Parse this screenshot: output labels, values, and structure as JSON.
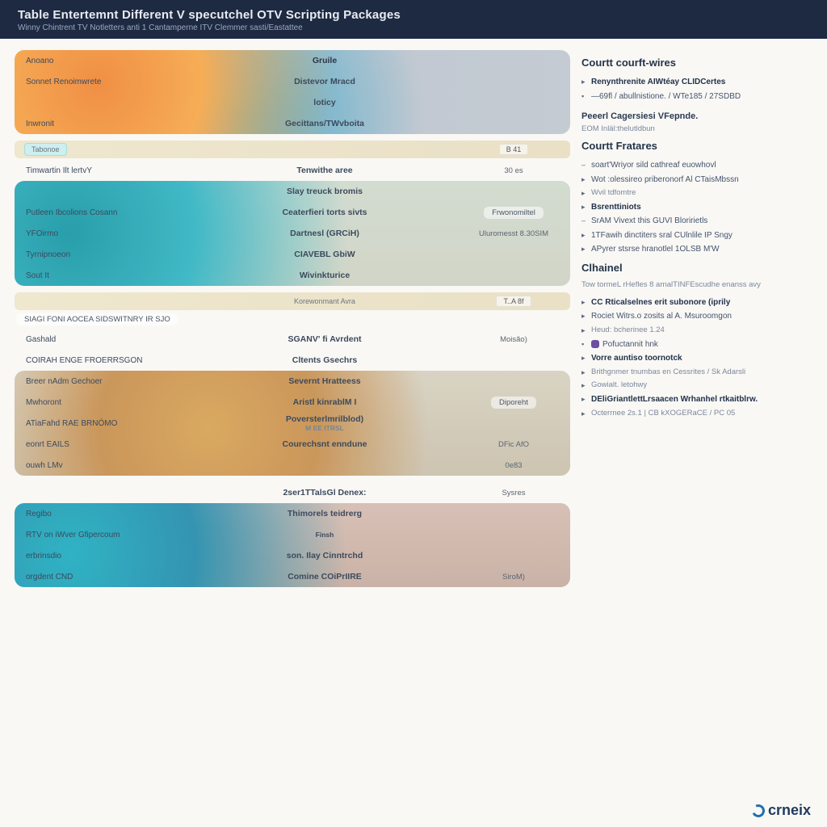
{
  "header": {
    "title": "Table Entertemnt Different V specutchel OTV Scripting Packages",
    "subtitle": "Winny Chintrent TV Notletters anti 1 Cantamperne ITV Clemmer sasti/Eastattee"
  },
  "blocks": [
    {
      "band_css": "radial-gradient(circle at 15% 40%, #f08a3c 0%, #f6a94e 22%, rgba(246,169,78,0) 50%), radial-gradient(circle at 40% 80%, #3aa6c9 0%, rgba(58,166,201,0) 55%), linear-gradient(90deg,#b9c1cc 0%, #c2c9d2 100%)",
      "rows": [
        {
          "c1": "Anoano",
          "c2": "Gruile",
          "c3": "",
          "head": true
        },
        {
          "c1": "Sonnet Renoimwrete",
          "c2": "Distevor Mracd",
          "c3": ""
        },
        {
          "c1": "",
          "c2": "loticy",
          "c3": ""
        },
        {
          "c1": "Inwronit",
          "c2": "Gecittans/TWvboita",
          "c3": ""
        }
      ],
      "footer_left_chip": "Tabonoe",
      "footer_right_box": "B 41",
      "below_left": "Timwartin Ilt lertvY",
      "below_center": "Tenwithe aree",
      "below_right": "30 es"
    },
    {
      "band_css": "radial-gradient(circle at 10% 50%, #1f9aa8 0%, #38b6c4 25%, rgba(56,182,196,0) 55%), linear-gradient(180deg,#d1dbcf 0%, #cfd4c5 100%)",
      "rows": [
        {
          "c1": "",
          "c2": "Slay treuck bromis",
          "c3": ""
        },
        {
          "c1": "Putleen Ibcolions Cosann",
          "c2": "Ceaterfieri torts sivts",
          "c3": "Frwonomiltel",
          "c3pill": true
        },
        {
          "c1": "YFOirmo",
          "c2": "Dartnesl (GRCiH)",
          "c3": "Uluromesst 8.30SIM",
          "tiny3": true
        },
        {
          "c1": "Tyrnipnoeon",
          "c2": "CIAVEBL GbiW",
          "c3": ""
        },
        {
          "c1": "Sout It",
          "c2": "Wivinkturice",
          "c3": "",
          "tiny1": true
        }
      ],
      "footer_left_chip": "",
      "footer_right_box": "T..A 8f",
      "mid_tiny": "Korewonmant Avra"
    },
    {
      "band_css": "radial-gradient(circle at 35% 55%, #d9a559 0%, #c89253 30%, rgba(200,146,83,0) 60%), linear-gradient(180deg,#d8d2c2 0%, #cbc2ae 100%)",
      "pre_left_pill": "SIAGI FONI  AOCEA SIDSWITNRY IR SJO",
      "pre_rows": [
        {
          "c1": "Gashald",
          "c2": "SGANV' fi Avrdent",
          "c3": "Moisão)",
          "tiny1": true,
          "tiny3": true
        },
        {
          "c1": "COIRAH ENGE FROERRSGON",
          "c2": "Cltents Gsechrs",
          "c3": ""
        }
      ],
      "rows": [
        {
          "c1": "Breer nAdm Gechoer",
          "c2": "Severnt Hratteess",
          "c3": ""
        },
        {
          "c1": "Mwhoront",
          "c2": "Aristl kinrablM I",
          "c3": "Diporeht",
          "c3pill": true
        },
        {
          "c1": "ATiaFahd RAE BRNÓMO",
          "c2": "Poversterlmrilblod)",
          "c3": "",
          "sub2": "M   EE ITRSL"
        },
        {
          "c1": "eonrt EAILS",
          "c2": "Courechsnt enndune",
          "c3": "DFic AfO",
          "tiny3": true
        },
        {
          "c1": "ouwh LMv",
          "c2": "",
          "c3": "0e83",
          "tiny1": true,
          "tiny3": true
        }
      ]
    },
    {
      "band_css": "radial-gradient(circle at 10% 60%, #26b0c2 0%, #2a8fae 25%, rgba(42,143,174,0) 55%), linear-gradient(180deg,#d7bdb3 0%, #c7afa3 100%)",
      "pre_rows": [
        {
          "c1": "",
          "c2": "2ser1TTalsGl Denex:",
          "c3": "Sysres",
          "tiny3": true
        }
      ],
      "rows": [
        {
          "c1": "Regibo",
          "c2": "Thimorels teidrerg",
          "c3": ""
        },
        {
          "c1": "RTV on iWver Gfipercoum",
          "c2": "Finsh",
          "c3": "",
          "tiny2": true
        },
        {
          "c1": "erbrinsdio",
          "c2": "son. Ilay Cinntrchd",
          "c3": ""
        },
        {
          "c1": "orgdent CND",
          "c2": "Comine COiPrIIRE",
          "c3": "SiroM)",
          "tiny1": true,
          "tiny3": true
        }
      ]
    }
  ],
  "sidebar": {
    "sections": [
      {
        "title": "Courtt courft-wires",
        "items": [
          {
            "t": "Renynthrenite AIWtéay CLIDCertes",
            "b": true
          },
          {
            "t": "—69fl / abullnistione. / WTe185 / 27SDBD",
            "dot": true
          }
        ]
      },
      {
        "heading": "Peeerl Cagersiesi VFepnde.",
        "sub": "EOM Inläl:thelutldbun"
      },
      {
        "title": "Courtt Fratares",
        "items": [
          {
            "t": "soart'Wriyor sild cathreaf euowhovl",
            "dash": true
          },
          {
            "t": "Wot :olessireo priberonorf Al  CTaisMbssn"
          },
          {
            "t": "Wvil tdfomtre",
            "muted": true
          },
          {
            "t": "Bsrenttiniots",
            "b": true
          },
          {
            "t": "SrAM Vivext this GUVI Bloririetls",
            "dash": true
          },
          {
            "t": "1TFawih dinctiters sral CUlnlile IP Sngy"
          },
          {
            "t": "APyrer stsrse hranotlel 1OLSB M'W"
          }
        ]
      },
      {
        "title": "Clhainel",
        "lead": "Tow tormeL rHefles 8 arnalTINFEscudhe enanss avy",
        "items": [
          {
            "t": "CC Rticalselnes erit subonore  (iprily",
            "b": true
          },
          {
            "t": "Rociet Witrs.o zosits al A. Msuroomgon"
          },
          {
            "t": "Heud: bcherinee 1.24",
            "muted": true
          },
          {
            "t": "Pofuctannit hnk",
            "dot": true,
            "icon": true
          },
          {
            "t": "Vorre auntiso toornotck",
            "b": true
          },
          {
            "t": "Brithgnmer tnumbas en Cessrites / Sk Adarsli",
            "muted": true
          },
          {
            "t": "Gowialt. letohwy",
            "muted": true
          },
          {
            "t": "DEliGriantlettLrsaacen Wrhanhel rtkaitblrw.",
            "b": true
          },
          {
            "t": "Octerrnee 2s.1 | CB kXOGERaCE / PC 05",
            "muted": true
          }
        ]
      }
    ]
  },
  "logo": "crneix"
}
